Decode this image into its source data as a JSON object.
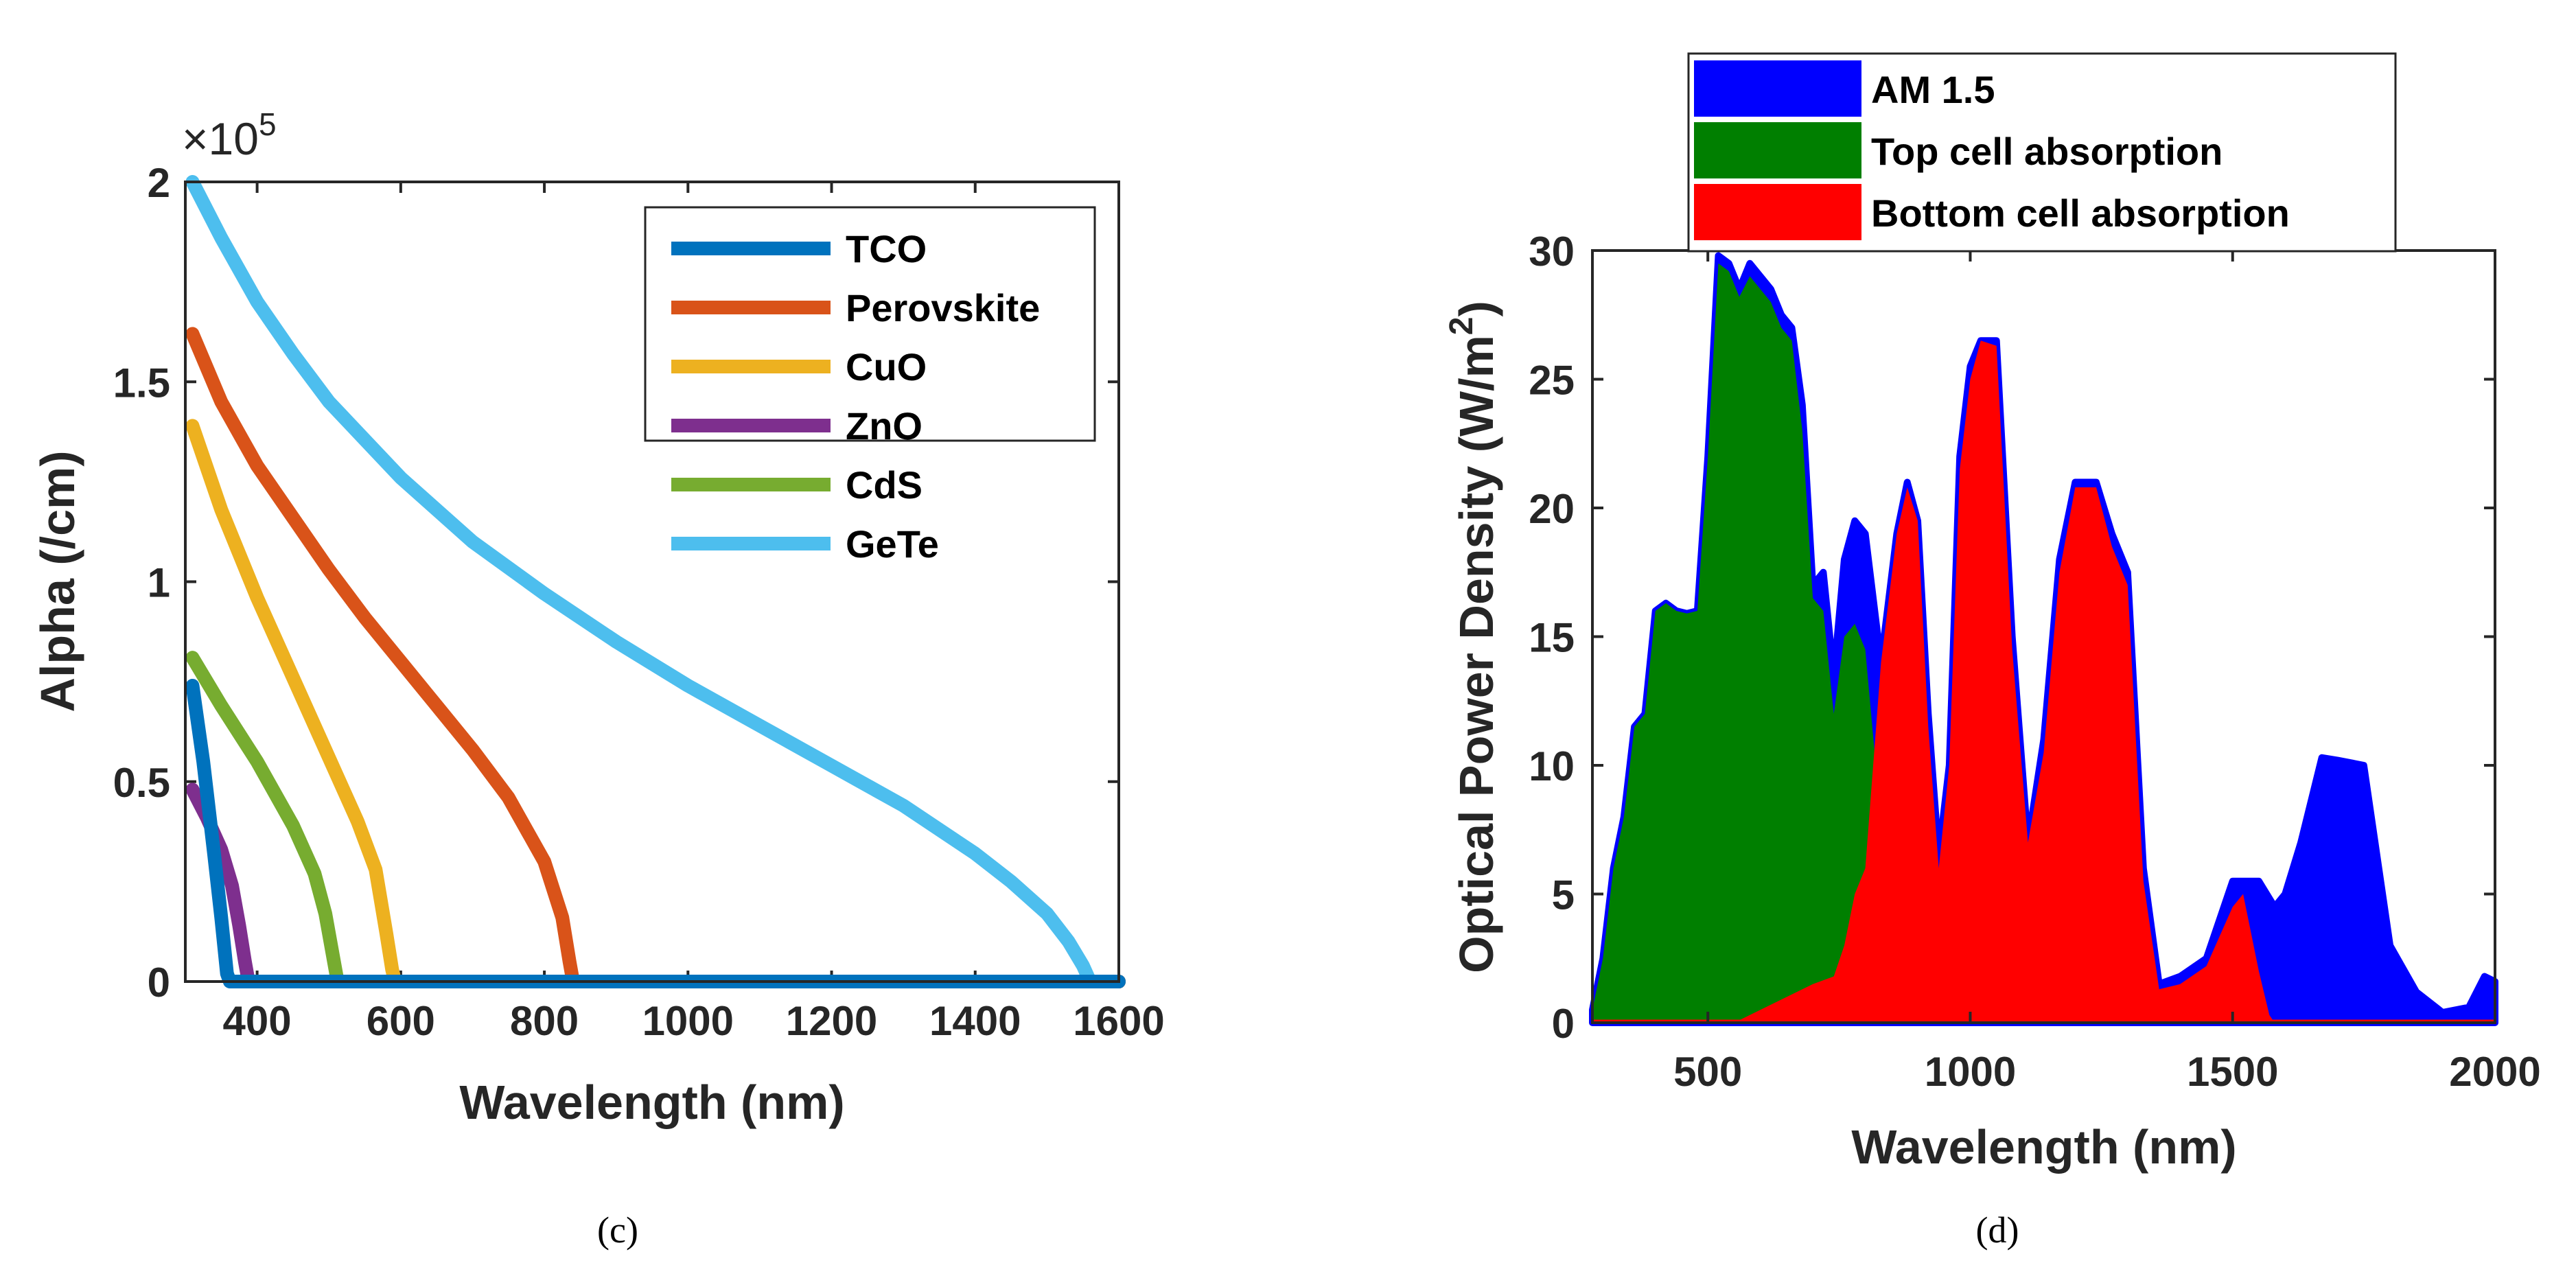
{
  "chart_data": [
    {
      "panel": "c",
      "type": "line",
      "caption": "(c)",
      "xlabel": "Wavelength (nm)",
      "ylabel": "Alpha (/cm)",
      "exponent_label": "×10",
      "exponent_power": "5",
      "xlim": [
        300,
        1600
      ],
      "ylim": [
        0,
        2
      ],
      "xticks": [
        400,
        600,
        800,
        1000,
        1200,
        1400,
        1600
      ],
      "xtick_labels": [
        "400",
        "600",
        "800",
        "1000",
        "1200",
        "1400",
        "1600"
      ],
      "yticks": [
        0,
        0.5,
        1,
        1.5,
        2
      ],
      "ytick_labels": [
        "0",
        "0.5",
        "1",
        "1.5",
        "2"
      ],
      "legend_position": "top-right",
      "series": [
        {
          "name": "TCO",
          "color": "#0072BD",
          "x": [
            310,
            325,
            340,
            350,
            358,
            362,
            1600
          ],
          "y": [
            0.74,
            0.55,
            0.32,
            0.16,
            0.02,
            0,
            0
          ]
        },
        {
          "name": "Perovskite",
          "color": "#D95319",
          "x": [
            310,
            350,
            400,
            450,
            500,
            550,
            600,
            650,
            700,
            750,
            800,
            825,
            835,
            840,
            1600
          ],
          "y": [
            1.62,
            1.45,
            1.29,
            1.16,
            1.03,
            0.91,
            0.8,
            0.69,
            0.58,
            0.46,
            0.3,
            0.16,
            0.05,
            0,
            0
          ]
        },
        {
          "name": "CuO",
          "color": "#EDB120",
          "x": [
            310,
            350,
            400,
            450,
            500,
            540,
            565,
            580,
            588,
            592,
            1600
          ],
          "y": [
            1.39,
            1.18,
            0.96,
            0.76,
            0.56,
            0.4,
            0.28,
            0.12,
            0.03,
            0,
            0
          ]
        },
        {
          "name": "ZnO",
          "color": "#7E2F8E",
          "x": [
            310,
            330,
            350,
            365,
            375,
            383,
            388,
            1600
          ],
          "y": [
            0.48,
            0.41,
            0.33,
            0.24,
            0.14,
            0.05,
            0,
            0
          ]
        },
        {
          "name": "CdS",
          "color": "#77AC30",
          "x": [
            310,
            350,
            400,
            450,
            480,
            495,
            505,
            512,
            1600
          ],
          "y": [
            0.81,
            0.69,
            0.55,
            0.39,
            0.27,
            0.17,
            0.07,
            0,
            0
          ]
        },
        {
          "name": "GeTe",
          "color": "#4DBEEE",
          "x": [
            310,
            350,
            400,
            450,
            500,
            600,
            700,
            800,
            900,
            1000,
            1100,
            1200,
            1300,
            1400,
            1450,
            1500,
            1530,
            1550,
            1560,
            1600
          ],
          "y": [
            2.0,
            1.86,
            1.7,
            1.57,
            1.45,
            1.26,
            1.1,
            0.97,
            0.85,
            0.74,
            0.64,
            0.54,
            0.44,
            0.32,
            0.25,
            0.17,
            0.1,
            0.04,
            0,
            0
          ]
        }
      ]
    },
    {
      "panel": "d",
      "type": "area",
      "caption": "(d)",
      "xlabel": "Wavelength (nm)",
      "ylabel": "Optical Power Density (W/m",
      "ylabel_sup": "2",
      "ylabel_close": ")",
      "xlim": [
        280,
        2000
      ],
      "ylim": [
        0,
        30
      ],
      "xticks": [
        500,
        1000,
        1500,
        2000
      ],
      "xtick_labels": [
        "500",
        "1000",
        "1500",
        "2000"
      ],
      "yticks": [
        0,
        5,
        10,
        15,
        20,
        25,
        30
      ],
      "ytick_labels": [
        "0",
        "5",
        "10",
        "15",
        "20",
        "25",
        "30"
      ],
      "legend_position": "top (outside)",
      "series": [
        {
          "name": "AM 1.5",
          "color": "#0000FF",
          "x": [
            280,
            300,
            320,
            340,
            360,
            380,
            400,
            420,
            440,
            460,
            480,
            500,
            520,
            540,
            560,
            580,
            600,
            620,
            640,
            660,
            680,
            700,
            720,
            740,
            760,
            780,
            800,
            830,
            860,
            880,
            900,
            920,
            940,
            960,
            980,
            1000,
            1020,
            1050,
            1080,
            1110,
            1140,
            1170,
            1200,
            1240,
            1270,
            1300,
            1330,
            1360,
            1400,
            1450,
            1500,
            1520,
            1550,
            1580,
            1600,
            1630,
            1670,
            1700,
            1750,
            1800,
            1850,
            1900,
            1950,
            1980,
            2000
          ],
          "y": [
            0.5,
            2.5,
            6,
            8,
            11.5,
            12,
            16,
            16.3,
            16,
            15.9,
            16,
            22,
            29.8,
            29.5,
            28.5,
            29.5,
            29,
            28.5,
            27.5,
            27,
            24,
            17,
            17.5,
            13.5,
            18,
            19.5,
            19,
            14,
            19,
            21,
            19.5,
            12,
            6.5,
            10,
            22,
            25.5,
            26.5,
            26.5,
            15,
            7,
            11,
            18,
            21,
            21,
            19,
            17.5,
            6,
            1.5,
            1.8,
            2.5,
            5.5,
            5.5,
            5.5,
            4.5,
            5,
            7,
            10.3,
            10.2,
            10,
            3,
            1.2,
            0.4,
            0.6,
            1.8,
            1.6
          ]
        },
        {
          "name": "Top cell absorption",
          "color": "#007F00",
          "x": [
            280,
            300,
            320,
            340,
            360,
            380,
            400,
            420,
            440,
            460,
            480,
            500,
            520,
            540,
            560,
            580,
            600,
            620,
            640,
            660,
            680,
            700,
            720,
            740,
            760,
            780,
            800,
            820,
            840
          ],
          "y": [
            0.5,
            2.5,
            6,
            8,
            11.5,
            12,
            16,
            16.3,
            16,
            15.9,
            16,
            22,
            29.5,
            29.2,
            28.2,
            29,
            28.5,
            28,
            27,
            26.5,
            23,
            16.5,
            16,
            12,
            15,
            15.5,
            14.5,
            10,
            5
          ]
        },
        {
          "name": "Bottom cell absorption",
          "color": "#FF0000",
          "x": [
            280,
            550,
            600,
            650,
            700,
            740,
            760,
            780,
            800,
            830,
            860,
            880,
            900,
            920,
            940,
            960,
            980,
            1000,
            1020,
            1050,
            1080,
            1110,
            1140,
            1170,
            1200,
            1240,
            1270,
            1300,
            1330,
            1360,
            1400,
            1450,
            1500,
            1520,
            1550,
            1570,
            1580
          ],
          "y": [
            0,
            0,
            0.5,
            1,
            1.5,
            1.8,
            3,
            5,
            6,
            14,
            19,
            20.8,
            19.5,
            11.5,
            6,
            10,
            21.5,
            25,
            26.5,
            26.3,
            14.5,
            7,
            10.5,
            17.5,
            20.8,
            20.8,
            18.5,
            17,
            5.5,
            1.3,
            1.5,
            2.2,
            4.5,
            5,
            2,
            0.3,
            0
          ]
        }
      ]
    }
  ]
}
